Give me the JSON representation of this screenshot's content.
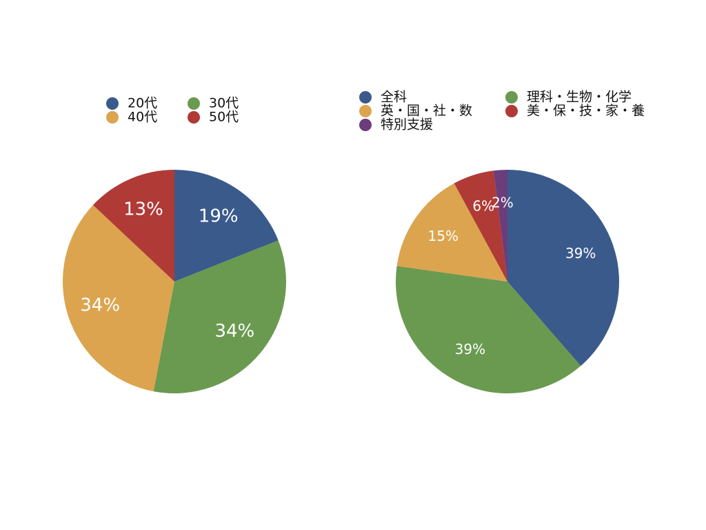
{
  "chart_data": [
    {
      "type": "pie",
      "categories": [
        "20代",
        "30代",
        "40代",
        "50代"
      ],
      "values": [
        19,
        34,
        34,
        13
      ],
      "value_labels": [
        "19%",
        "34%",
        "34%",
        "13%"
      ],
      "colors": [
        "#3a5a8c",
        "#6a9a50",
        "#dca44f",
        "#b03a36"
      ]
    },
    {
      "type": "pie",
      "categories": [
        "全科",
        "理科・生物・化学",
        "英・国・社・数",
        "美・保・技・家・養",
        "特別支援"
      ],
      "values": [
        39,
        39,
        15,
        6,
        2
      ],
      "value_labels": [
        "39%",
        "39%",
        "15%",
        "6%",
        "2%"
      ],
      "colors": [
        "#3a5a8c",
        "#6a9a50",
        "#dca44f",
        "#b03a36",
        "#6b3d7a"
      ]
    }
  ]
}
